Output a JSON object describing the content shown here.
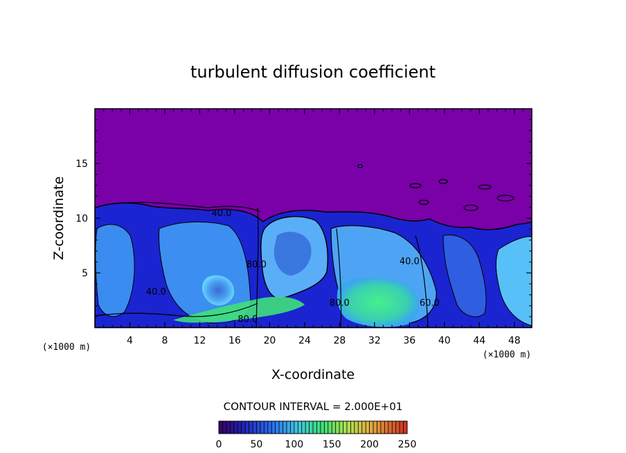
{
  "chart_data": {
    "type": "heatmap",
    "title": "turbulent diffusion coefficient",
    "xlabel": "X-coordinate",
    "ylabel": "Z-coordinate",
    "x_unit": "(×1000 m)",
    "y_unit": "(×1000 m)",
    "xlim": [
      0,
      50
    ],
    "ylim": [
      0,
      20
    ],
    "x_ticks": [
      4,
      8,
      12,
      16,
      20,
      24,
      28,
      32,
      36,
      40,
      44,
      48
    ],
    "y_ticks": [
      5,
      10,
      15
    ],
    "contour_interval_text": "CONTOUR INTERVAL = 2.000E+01",
    "contour_labels": [
      {
        "text": "40.0",
        "x": 14.5,
        "z": 10.2
      },
      {
        "text": "40.0",
        "x": 7.0,
        "z": 3.0
      },
      {
        "text": "80.0",
        "x": 18.5,
        "z": 5.5
      },
      {
        "text": "80.0",
        "x": 17.5,
        "z": 0.5
      },
      {
        "text": "80.0",
        "x": 28.0,
        "z": 2.0
      },
      {
        "text": "40.0",
        "x": 36.0,
        "z": 5.8
      },
      {
        "text": "60.0",
        "x": 38.3,
        "z": 2.0
      }
    ],
    "colorbar": {
      "min": 0,
      "max": 250,
      "ticks": [
        0,
        50,
        100,
        150,
        200,
        250
      ]
    },
    "colors": {
      "background": "#7a00a8",
      "low": "#1a1ac8",
      "mid": "#5ab4ff",
      "high": "#40e880"
    }
  }
}
